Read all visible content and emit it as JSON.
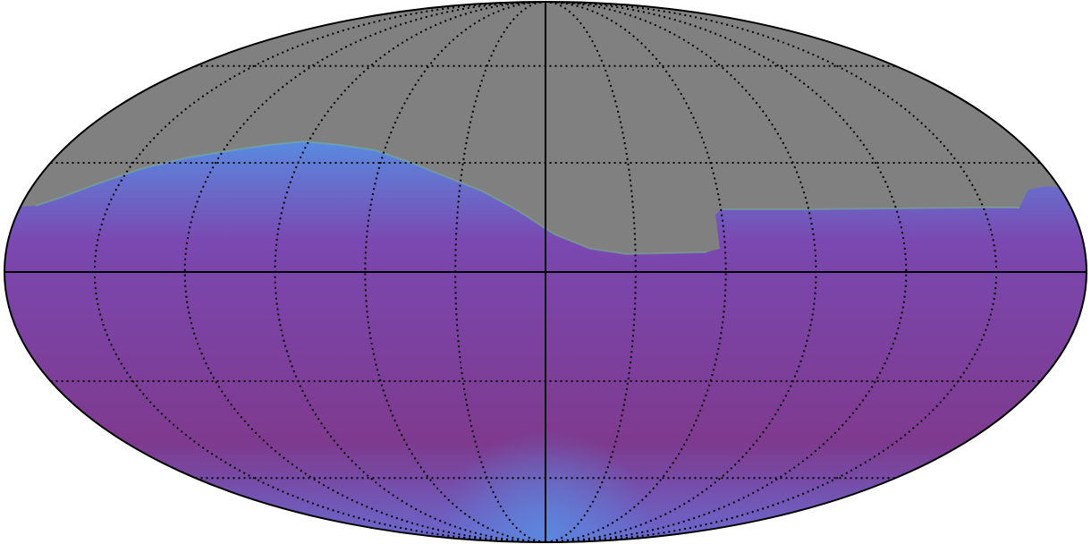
{
  "map": {
    "projection": "mollweide",
    "colors": {
      "masked": "#808080",
      "data_low": "#7e3a8e",
      "data_mid": "#7a48b0",
      "data_high": "#5a8ae0",
      "data_peak": "#6cd49a",
      "outline": "#000000",
      "graticule": "#000000"
    },
    "graticule": {
      "style": "dotted",
      "meridian_step_deg": 30,
      "parallel_step_deg": 30
    },
    "axes": {
      "equator": "solid",
      "central_meridian": "solid"
    }
  }
}
